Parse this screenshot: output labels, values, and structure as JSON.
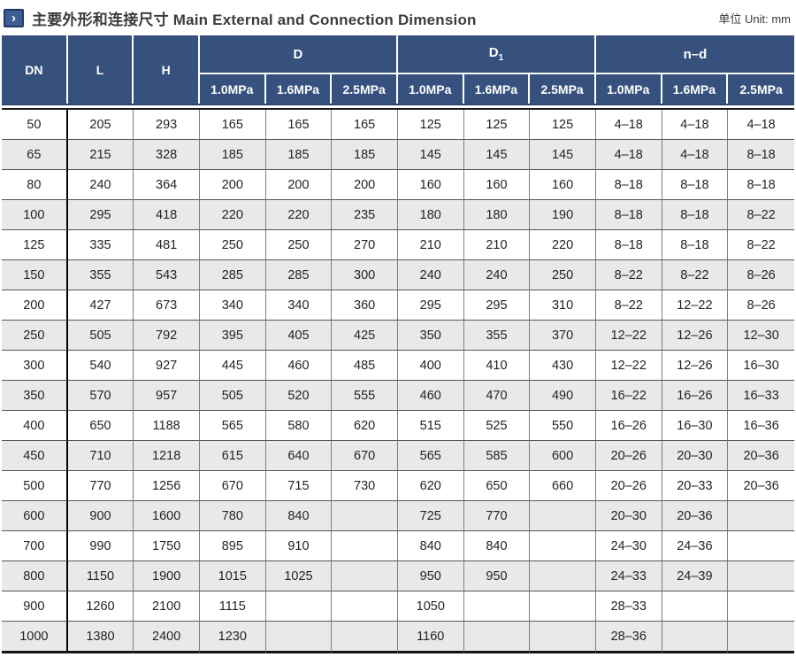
{
  "title": {
    "text": "主要外形和连接尺寸 Main External and Connection Dimension",
    "unit_label": "单位 Unit: mm",
    "chevron_icon": "›"
  },
  "colors": {
    "header_bg": "#36517d",
    "icon_bg": "#3d5e92",
    "icon_border": "#1d3a69",
    "row_alt": "#e9e9e9"
  },
  "table": {
    "columns": {
      "dn": "DN",
      "l": "L",
      "h": "H",
      "d": "D",
      "d1_base": "D",
      "d1_sub": "1",
      "nd": "n–d"
    },
    "pressures": [
      "1.0MPa",
      "1.6MPa",
      "2.5MPa"
    ],
    "rows": [
      [
        50,
        205,
        293,
        165,
        165,
        165,
        125,
        125,
        125,
        "4–18",
        "4–18",
        "4–18"
      ],
      [
        65,
        215,
        328,
        185,
        185,
        185,
        145,
        145,
        145,
        "4–18",
        "4–18",
        "8–18"
      ],
      [
        80,
        240,
        364,
        200,
        200,
        200,
        160,
        160,
        160,
        "8–18",
        "8–18",
        "8–18"
      ],
      [
        100,
        295,
        418,
        220,
        220,
        235,
        180,
        180,
        190,
        "8–18",
        "8–18",
        "8–22"
      ],
      [
        125,
        335,
        481,
        250,
        250,
        270,
        210,
        210,
        220,
        "8–18",
        "8–18",
        "8–22"
      ],
      [
        150,
        355,
        543,
        285,
        285,
        300,
        240,
        240,
        250,
        "8–22",
        "8–22",
        "8–26"
      ],
      [
        200,
        427,
        673,
        340,
        340,
        360,
        295,
        295,
        310,
        "8–22",
        "12–22",
        "8–26"
      ],
      [
        250,
        505,
        792,
        395,
        405,
        425,
        350,
        355,
        370,
        "12–22",
        "12–26",
        "12–30"
      ],
      [
        300,
        540,
        927,
        445,
        460,
        485,
        400,
        410,
        430,
        "12–22",
        "12–26",
        "16–30"
      ],
      [
        350,
        570,
        957,
        505,
        520,
        555,
        460,
        470,
        490,
        "16–22",
        "16–26",
        "16–33"
      ],
      [
        400,
        650,
        1188,
        565,
        580,
        620,
        515,
        525,
        550,
        "16–26",
        "16–30",
        "16–36"
      ],
      [
        450,
        710,
        1218,
        615,
        640,
        670,
        565,
        585,
        600,
        "20–26",
        "20–30",
        "20–36"
      ],
      [
        500,
        770,
        1256,
        670,
        715,
        730,
        620,
        650,
        660,
        "20–26",
        "20–33",
        "20–36"
      ],
      [
        600,
        900,
        1600,
        780,
        840,
        "",
        725,
        770,
        "",
        "20–30",
        "20–36",
        ""
      ],
      [
        700,
        990,
        1750,
        895,
        910,
        "",
        840,
        840,
        "",
        "24–30",
        "24–36",
        ""
      ],
      [
        800,
        1150,
        1900,
        1015,
        1025,
        "",
        950,
        950,
        "",
        "24–33",
        "24–39",
        ""
      ],
      [
        900,
        1260,
        2100,
        1115,
        "",
        "",
        1050,
        "",
        "",
        "28–33",
        "",
        ""
      ],
      [
        1000,
        1380,
        2400,
        1230,
        "",
        "",
        1160,
        "",
        "",
        "28–36",
        "",
        ""
      ]
    ]
  }
}
